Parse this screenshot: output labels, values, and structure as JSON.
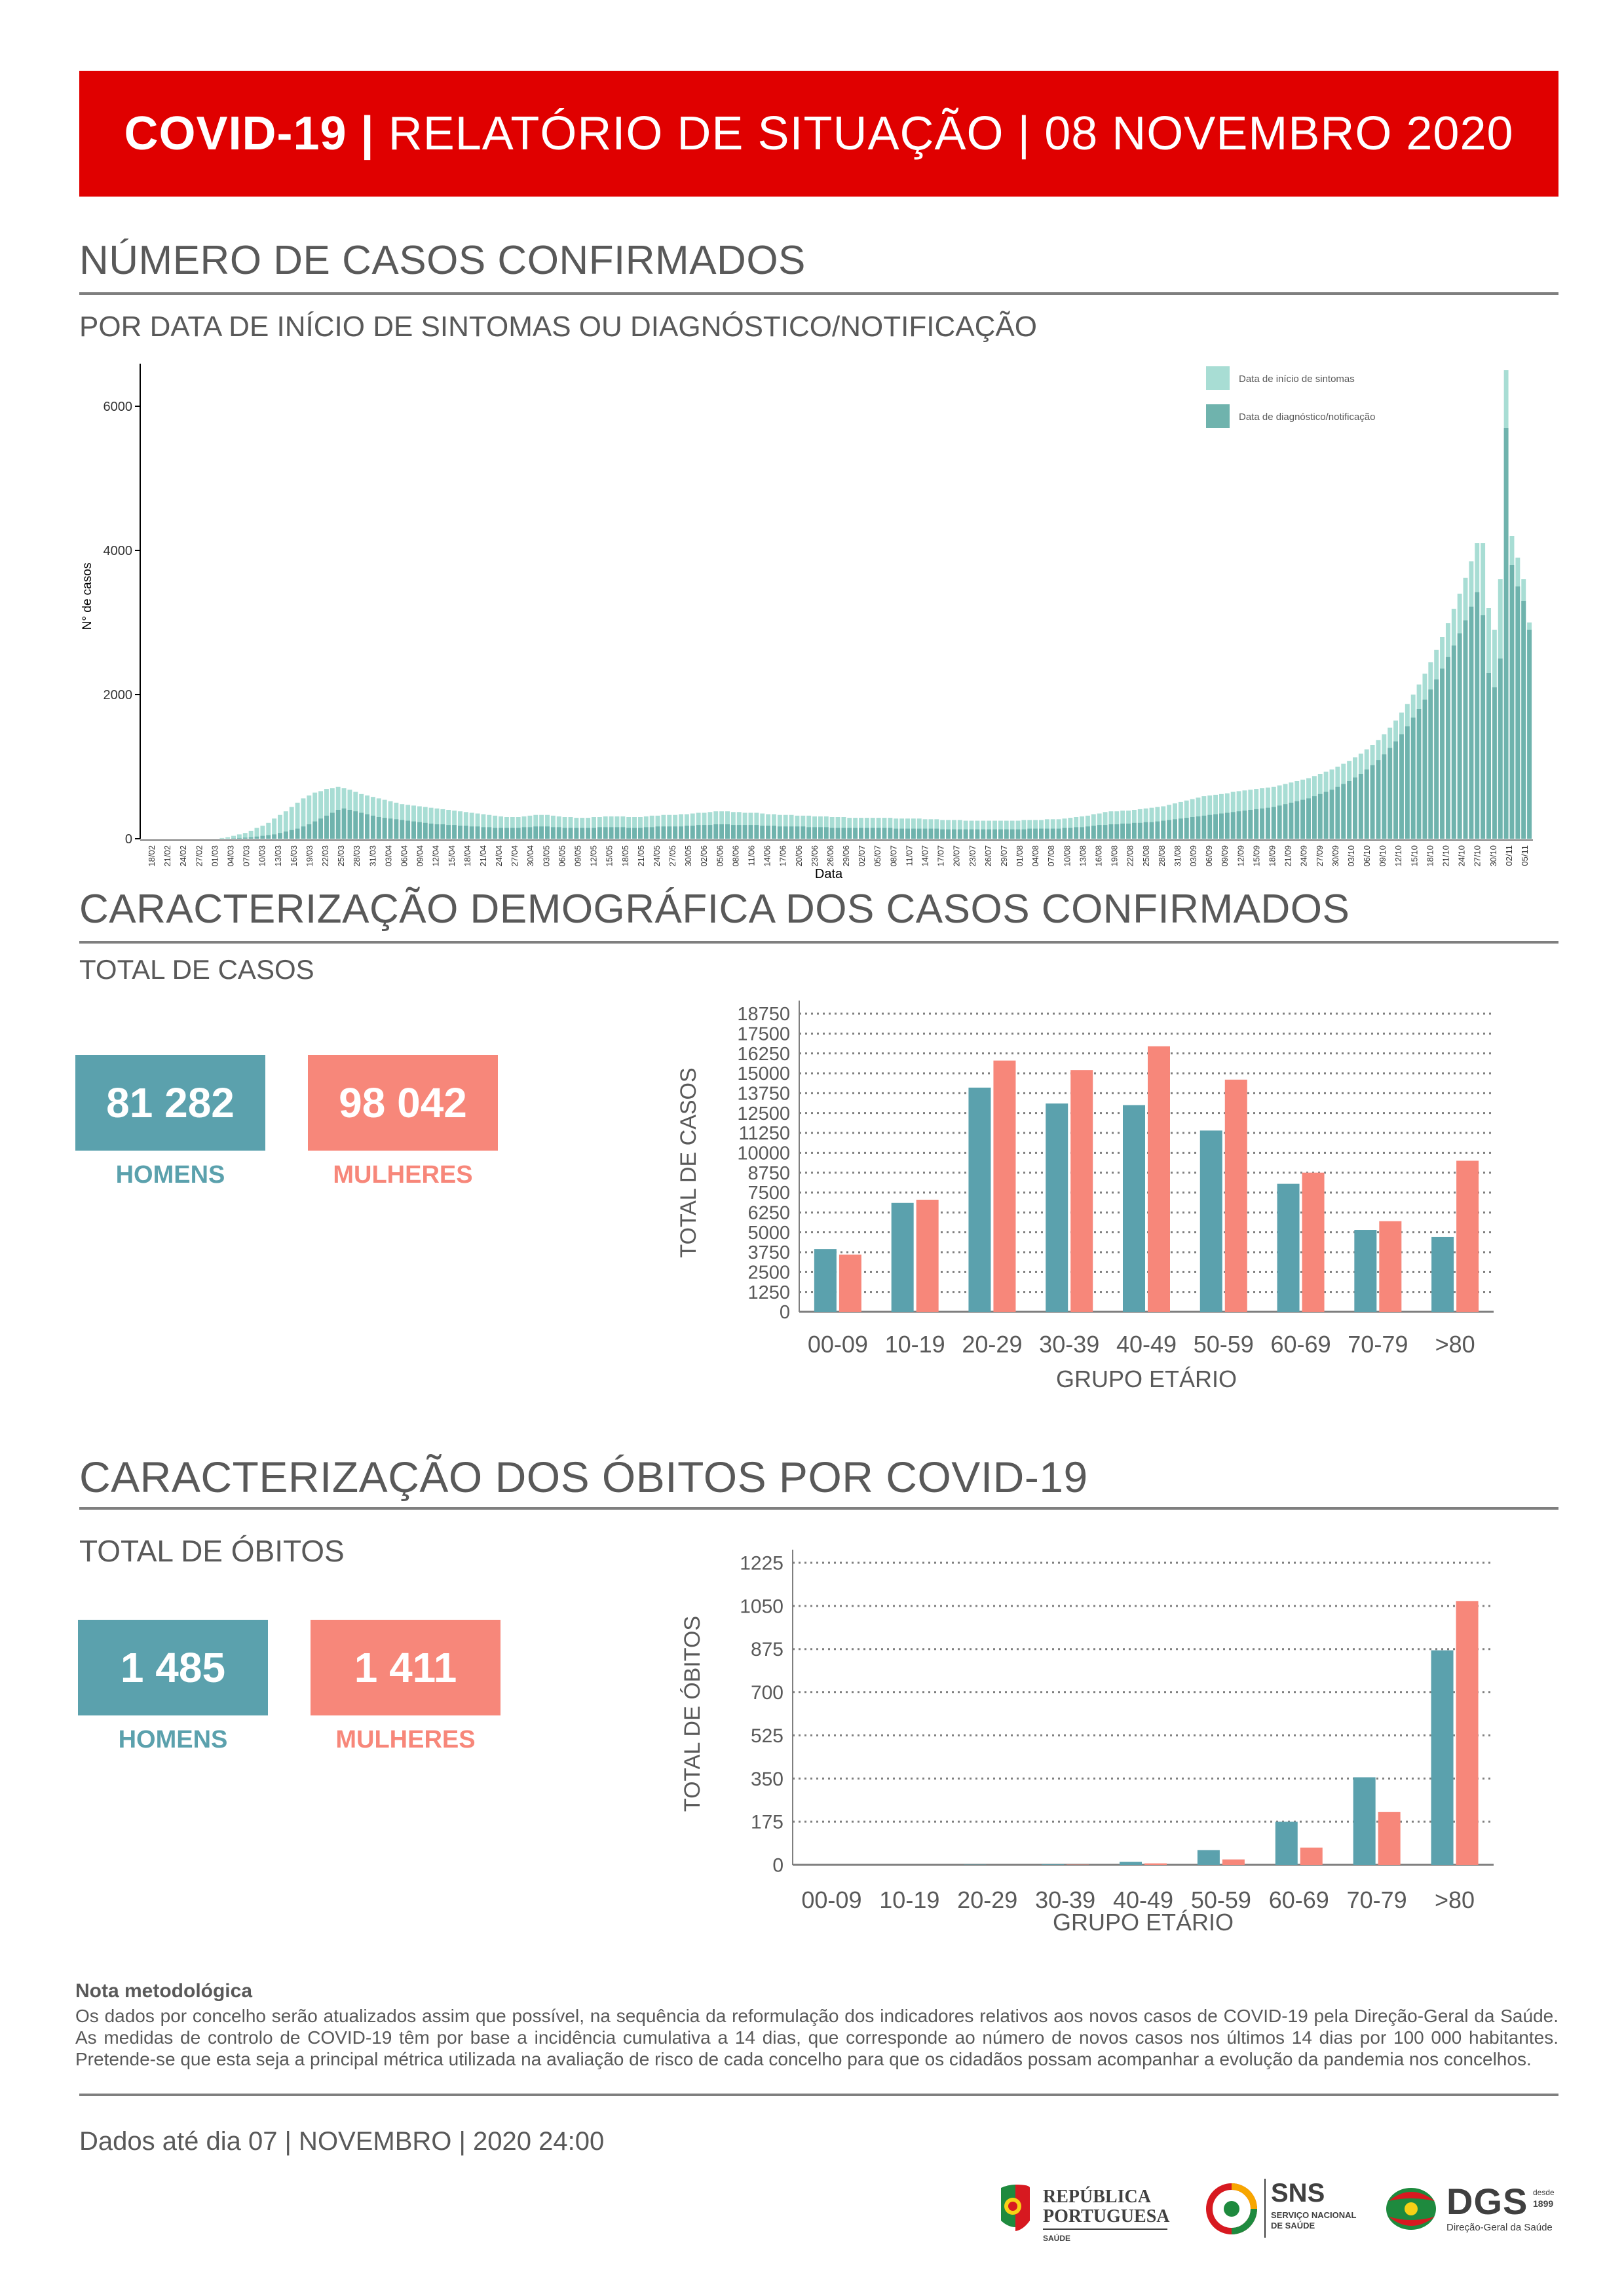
{
  "header": {
    "bold": "COVID-19 |",
    "title": " RELATÓRIO DE SITUAÇÃO | 08 NOVEMBRO 2020"
  },
  "section1": {
    "title": "NÚMERO DE CASOS CONFIRMADOS",
    "subtitle": "POR DATA DE INÍCIO DE SINTOMAS OU DIAGNÓSTICO/NOTIFICAÇÃO"
  },
  "section2": {
    "title": "CARACTERIZAÇÃO DEMOGRÁFICA DOS CASOS CONFIRMADOS",
    "subtitle": "TOTAL DE CASOS",
    "men_value": "81 282",
    "men_label": "HOMENS",
    "women_value": "98 042",
    "women_label": "MULHERES"
  },
  "section3": {
    "title": "CARACTERIZAÇÃO DOS ÓBITOS POR COVID-19",
    "subtitle": "TOTAL DE ÓBITOS",
    "men_value": "1 485",
    "men_label": "HOMENS",
    "women_value": "1 411",
    "women_label": "MULHERES"
  },
  "colors": {
    "men": "#5ba1ad",
    "women": "#f7877a",
    "symptoms": "#a8ddd4",
    "diagnosis": "#6fb3ad",
    "banner": "#e00000"
  },
  "chart_data": [
    {
      "type": "bar",
      "stacked": "overlay",
      "xlabel": "Data",
      "ylabel": "N° de casos",
      "ylim": [
        0,
        6500
      ],
      "yticks": [
        0,
        2000,
        4000,
        6000
      ],
      "legend": "top-right",
      "legend_entries": [
        "Data de início de sintomas",
        "Data de diagnóstico/notificação"
      ],
      "x_start": "2020-02-18",
      "x_end": "2020-11-07",
      "tick_labels": [
        "18/02",
        "21/02",
        "24/02",
        "27/02",
        "01/03",
        "04/03",
        "07/03",
        "10/03",
        "13/03",
        "16/03",
        "19/03",
        "22/03",
        "25/03",
        "28/03",
        "31/03",
        "03/04",
        "06/04",
        "09/04",
        "12/04",
        "15/04",
        "18/04",
        "21/04",
        "24/04",
        "27/04",
        "30/04",
        "03/05",
        "06/05",
        "09/05",
        "12/05",
        "15/05",
        "18/05",
        "21/05",
        "24/05",
        "27/05",
        "30/05",
        "02/06",
        "05/06",
        "08/06",
        "11/06",
        "14/06",
        "17/06",
        "20/06",
        "23/06",
        "26/06",
        "29/06",
        "02/07",
        "05/07",
        "08/07",
        "11/07",
        "14/07",
        "17/07",
        "20/07",
        "23/07",
        "26/07",
        "29/07",
        "01/08",
        "04/08",
        "07/08",
        "10/08",
        "13/08",
        "16/08",
        "19/08",
        "22/08",
        "25/08",
        "28/08",
        "31/08",
        "03/09",
        "06/09",
        "09/09",
        "12/09",
        "15/09",
        "18/09",
        "21/09",
        "24/09",
        "27/09",
        "30/09",
        "03/10",
        "06/10",
        "09/10",
        "12/10",
        "15/10",
        "18/10",
        "21/10",
        "24/10",
        "27/10",
        "30/10",
        "02/11",
        "05/11"
      ],
      "series": [
        {
          "name": "Data de início de sintomas",
          "values": [
            0,
            0,
            0,
            0,
            0,
            0,
            0,
            0,
            0,
            0,
            0,
            0,
            0,
            10,
            20,
            40,
            60,
            80,
            110,
            150,
            180,
            220,
            280,
            330,
            380,
            440,
            500,
            560,
            600,
            640,
            660,
            690,
            700,
            720,
            700,
            680,
            650,
            620,
            600,
            580,
            560,
            540,
            520,
            500,
            480,
            470,
            460,
            450,
            440,
            430,
            420,
            410,
            400,
            390,
            380,
            370,
            360,
            350,
            340,
            330,
            320,
            310,
            300,
            300,
            300,
            310,
            320,
            330,
            330,
            330,
            320,
            310,
            300,
            300,
            290,
            290,
            290,
            300,
            300,
            310,
            310,
            310,
            310,
            300,
            300,
            300,
            310,
            320,
            320,
            330,
            330,
            330,
            340,
            340,
            350,
            360,
            360,
            370,
            380,
            380,
            380,
            370,
            370,
            360,
            360,
            360,
            350,
            340,
            340,
            330,
            330,
            330,
            320,
            320,
            320,
            310,
            310,
            310,
            300,
            300,
            300,
            290,
            290,
            290,
            290,
            290,
            290,
            290,
            290,
            280,
            280,
            280,
            280,
            280,
            270,
            270,
            270,
            260,
            260,
            260,
            260,
            250,
            250,
            250,
            250,
            250,
            250,
            250,
            250,
            250,
            250,
            260,
            260,
            260,
            260,
            270,
            270,
            270,
            280,
            290,
            300,
            310,
            320,
            340,
            350,
            370,
            380,
            380,
            390,
            390,
            400,
            410,
            420,
            430,
            440,
            450,
            470,
            490,
            510,
            530,
            550,
            570,
            590,
            600,
            610,
            620,
            630,
            650,
            660,
            670,
            680,
            690,
            700,
            710,
            720,
            740,
            760,
            780,
            800,
            820,
            840,
            870,
            900,
            930,
            960,
            1000,
            1040,
            1080,
            1130,
            1180,
            1240,
            1300,
            1370,
            1450,
            1540,
            1640,
            1750,
            1870,
            2000,
            2140,
            2290,
            2450,
            2620,
            2800,
            2990,
            3190,
            3400,
            3620,
            3850,
            4100,
            4100,
            3200,
            2900,
            3600,
            6500,
            4200,
            3900,
            3600,
            3000
          ]
        },
        {
          "name": "Data de diagnóstico/notificação",
          "values": [
            0,
            0,
            0,
            0,
            0,
            0,
            0,
            0,
            0,
            0,
            0,
            0,
            0,
            0,
            0,
            5,
            10,
            15,
            20,
            30,
            40,
            50,
            60,
            80,
            100,
            120,
            140,
            170,
            200,
            240,
            280,
            320,
            360,
            400,
            420,
            400,
            380,
            360,
            340,
            320,
            300,
            290,
            280,
            270,
            260,
            250,
            240,
            230,
            220,
            210,
            200,
            200,
            190,
            190,
            180,
            180,
            170,
            170,
            160,
            160,
            150,
            150,
            150,
            150,
            150,
            160,
            160,
            170,
            170,
            170,
            160,
            160,
            150,
            150,
            150,
            150,
            150,
            150,
            160,
            160,
            160,
            160,
            160,
            150,
            150,
            150,
            160,
            160,
            170,
            170,
            170,
            170,
            170,
            180,
            180,
            190,
            190,
            190,
            200,
            200,
            200,
            190,
            190,
            190,
            190,
            190,
            180,
            180,
            180,
            170,
            170,
            170,
            170,
            170,
            160,
            160,
            160,
            160,
            150,
            150,
            150,
            150,
            150,
            150,
            150,
            150,
            150,
            150,
            150,
            140,
            140,
            140,
            140,
            140,
            140,
            140,
            140,
            130,
            130,
            130,
            130,
            130,
            130,
            130,
            130,
            130,
            130,
            130,
            130,
            130,
            130,
            130,
            140,
            140,
            140,
            140,
            140,
            140,
            150,
            150,
            160,
            160,
            170,
            180,
            190,
            190,
            200,
            200,
            210,
            210,
            220,
            220,
            230,
            230,
            240,
            250,
            260,
            270,
            280,
            290,
            300,
            310,
            320,
            330,
            340,
            350,
            360,
            370,
            380,
            390,
            400,
            410,
            420,
            430,
            440,
            460,
            480,
            500,
            520,
            540,
            560,
            590,
            620,
            650,
            680,
            720,
            760,
            800,
            850,
            900,
            960,
            1020,
            1090,
            1170,
            1260,
            1350,
            1450,
            1560,
            1680,
            1800,
            1930,
            2070,
            2210,
            2360,
            2520,
            2680,
            2850,
            3030,
            3220,
            3420,
            3100,
            2300,
            2100,
            2500,
            5700,
            3800,
            3500,
            3300,
            2900
          ]
        }
      ]
    },
    {
      "type": "bar",
      "xlabel": "GRUPO ETÁRIO",
      "ylabel": "TOTAL DE CASOS",
      "ylim": [
        0,
        18750
      ],
      "yticks": [
        0,
        1250,
        2500,
        3750,
        5000,
        6250,
        7500,
        8750,
        10000,
        11250,
        12500,
        13750,
        15000,
        16250,
        17500,
        18750
      ],
      "grid": true,
      "categories": [
        "00-09",
        "10-19",
        "20-29",
        "30-39",
        "40-49",
        "50-59",
        "60-69",
        "70-79",
        ">80"
      ],
      "series": [
        {
          "name": "HOMENS",
          "values": [
            3950,
            6850,
            14100,
            13100,
            13000,
            11400,
            8050,
            5150,
            4700
          ]
        },
        {
          "name": "MULHERES",
          "values": [
            3600,
            7050,
            15800,
            15200,
            16700,
            14600,
            8750,
            5700,
            9500
          ]
        }
      ]
    },
    {
      "type": "bar",
      "xlabel": "GRUPO ETÁRIO",
      "ylabel": "TOTAL DE ÓBITOS",
      "ylim": [
        0,
        1225
      ],
      "yticks": [
        0,
        175,
        350,
        525,
        700,
        875,
        1050,
        1225
      ],
      "grid": true,
      "categories": [
        "00-09",
        "10-19",
        "20-29",
        "30-39",
        "40-49",
        "50-59",
        "60-69",
        "70-79",
        ">80"
      ],
      "series": [
        {
          "name": "HOMENS",
          "values": [
            0,
            0,
            1,
            2,
            12,
            60,
            175,
            355,
            870
          ]
        },
        {
          "name": "MULHERES",
          "values": [
            0,
            0,
            0,
            1,
            6,
            22,
            70,
            215,
            1070
          ]
        }
      ]
    }
  ],
  "note": {
    "title": "Nota metodológica",
    "body": "Os dados por concelho serão atualizados assim que possível, na sequência da reformulação dos indicadores relativos aos novos casos de COVID-19 pela Direção-Geral da Saúde. As medidas de controlo de COVID-19 têm por base a incidência cumulativa a 14 dias, que corresponde ao número de novos casos nos últimos 14 dias por 100 000 habitantes. Pretende-se que esta seja a principal métrica utilizada na avaliação de risco de cada concelho para que os cidadãos possam acompanhar a evolução da pandemia nos concelhos."
  },
  "footer": {
    "date_text": "Dados até dia 07 | NOVEMBRO | 2020 24:00",
    "logo1_line1": "REPÚBLICA",
    "logo1_line2": "PORTUGUESA",
    "logo1_line3": "SAÚDE",
    "logo2_main": "SNS",
    "logo2_line1": "SERVIÇO NACIONAL",
    "logo2_line2": "DE SAÚDE",
    "logo3_main": "DGS",
    "logo3_since": "desde",
    "logo3_year": "1899",
    "logo3_sub": "Direção-Geral da Saúde"
  }
}
